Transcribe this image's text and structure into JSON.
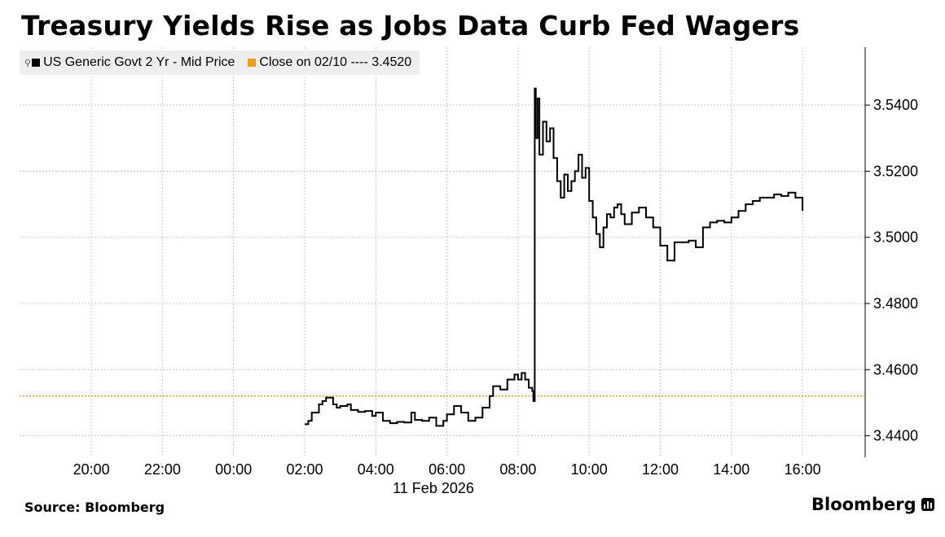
{
  "title": "Treasury Yields Rise as Jobs Data Curb Fed Wagers",
  "legend": {
    "series_label": "US Generic Govt 2 Yr - Mid Price",
    "close_label": "Close on 02/10 ---- 3.4520"
  },
  "source": "Source: Bloomberg",
  "brand": "Bloomberg",
  "colors": {
    "series": "#000000",
    "close_line": "#f39c12",
    "grid": "#c8c8c8",
    "legend_bg": "#eeeeee"
  },
  "chart_data": {
    "type": "line",
    "title": "Treasury Yields Rise as Jobs Data Curb Fed Wagers",
    "xlabel": "11 Feb 2026",
    "ylabel": "",
    "x_range_hours": [
      -5.5,
      17.8
    ],
    "ylim": [
      3.4335,
      3.5575
    ],
    "y_ticks": [
      3.44,
      3.46,
      3.48,
      3.5,
      3.52,
      3.54
    ],
    "y_tick_labels": [
      "3.4400",
      "3.4600",
      "3.4800",
      "3.5000",
      "3.5200",
      "3.5400"
    ],
    "x_tick_hours": [
      -4,
      -2,
      0,
      2,
      4,
      6,
      8,
      10,
      12,
      14,
      16
    ],
    "x_tick_labels": [
      "20:00",
      "22:00",
      "00:00",
      "02:00",
      "04:00",
      "06:00",
      "08:00",
      "10:00",
      "12:00",
      "14:00",
      "16:00"
    ],
    "grid": true,
    "reference_line": {
      "name": "Close on 02/10",
      "value": 3.452
    },
    "series": [
      {
        "name": "US Generic Govt 2 Yr - Mid Price",
        "x": [
          2.0,
          2.1,
          2.2,
          2.4,
          2.5,
          2.6,
          2.8,
          2.9,
          3.0,
          3.2,
          3.3,
          3.5,
          3.7,
          3.9,
          4.0,
          4.2,
          4.4,
          4.6,
          4.8,
          5.0,
          5.1,
          5.3,
          5.5,
          5.7,
          5.9,
          6.0,
          6.2,
          6.4,
          6.6,
          6.8,
          7.0,
          7.2,
          7.3,
          7.5,
          7.7,
          7.9,
          8.0,
          8.1,
          8.2,
          8.3,
          8.4,
          8.43,
          8.47,
          8.5,
          8.55,
          8.6,
          8.7,
          8.8,
          8.9,
          9.0,
          9.1,
          9.2,
          9.3,
          9.4,
          9.5,
          9.6,
          9.7,
          9.8,
          9.9,
          10.0,
          10.1,
          10.2,
          10.3,
          10.4,
          10.5,
          10.6,
          10.7,
          10.8,
          10.9,
          11.0,
          11.2,
          11.4,
          11.6,
          11.8,
          12.0,
          12.2,
          12.4,
          12.6,
          12.8,
          13.0,
          13.2,
          13.4,
          13.6,
          13.8,
          14.0,
          14.2,
          14.4,
          14.6,
          14.8,
          15.0,
          15.2,
          15.4,
          15.6,
          15.8,
          16.0
        ],
        "values": [
          3.4435,
          3.4445,
          3.447,
          3.4495,
          3.4505,
          3.4515,
          3.4495,
          3.4485,
          3.449,
          3.4495,
          3.4478,
          3.4472,
          3.4475,
          3.446,
          3.447,
          3.4445,
          3.4438,
          3.4442,
          3.444,
          3.447,
          3.4448,
          3.4445,
          3.4455,
          3.443,
          3.4445,
          3.4465,
          3.449,
          3.447,
          3.4445,
          3.4455,
          3.4485,
          3.452,
          3.455,
          3.454,
          3.457,
          3.4585,
          3.457,
          3.459,
          3.457,
          3.4545,
          3.4535,
          3.4505,
          3.545,
          3.53,
          3.542,
          3.525,
          3.535,
          3.529,
          3.533,
          3.524,
          3.517,
          3.512,
          3.519,
          3.514,
          3.517,
          3.52,
          3.525,
          3.518,
          3.521,
          3.511,
          3.506,
          3.501,
          3.497,
          3.503,
          3.507,
          3.506,
          3.509,
          3.51,
          3.507,
          3.504,
          3.5075,
          3.509,
          3.506,
          3.503,
          3.4975,
          3.493,
          3.4985,
          3.4985,
          3.499,
          3.497,
          3.503,
          3.5045,
          3.505,
          3.5045,
          3.506,
          3.508,
          3.51,
          3.511,
          3.512,
          3.512,
          3.513,
          3.5125,
          3.5135,
          3.512,
          3.508
        ]
      }
    ]
  }
}
